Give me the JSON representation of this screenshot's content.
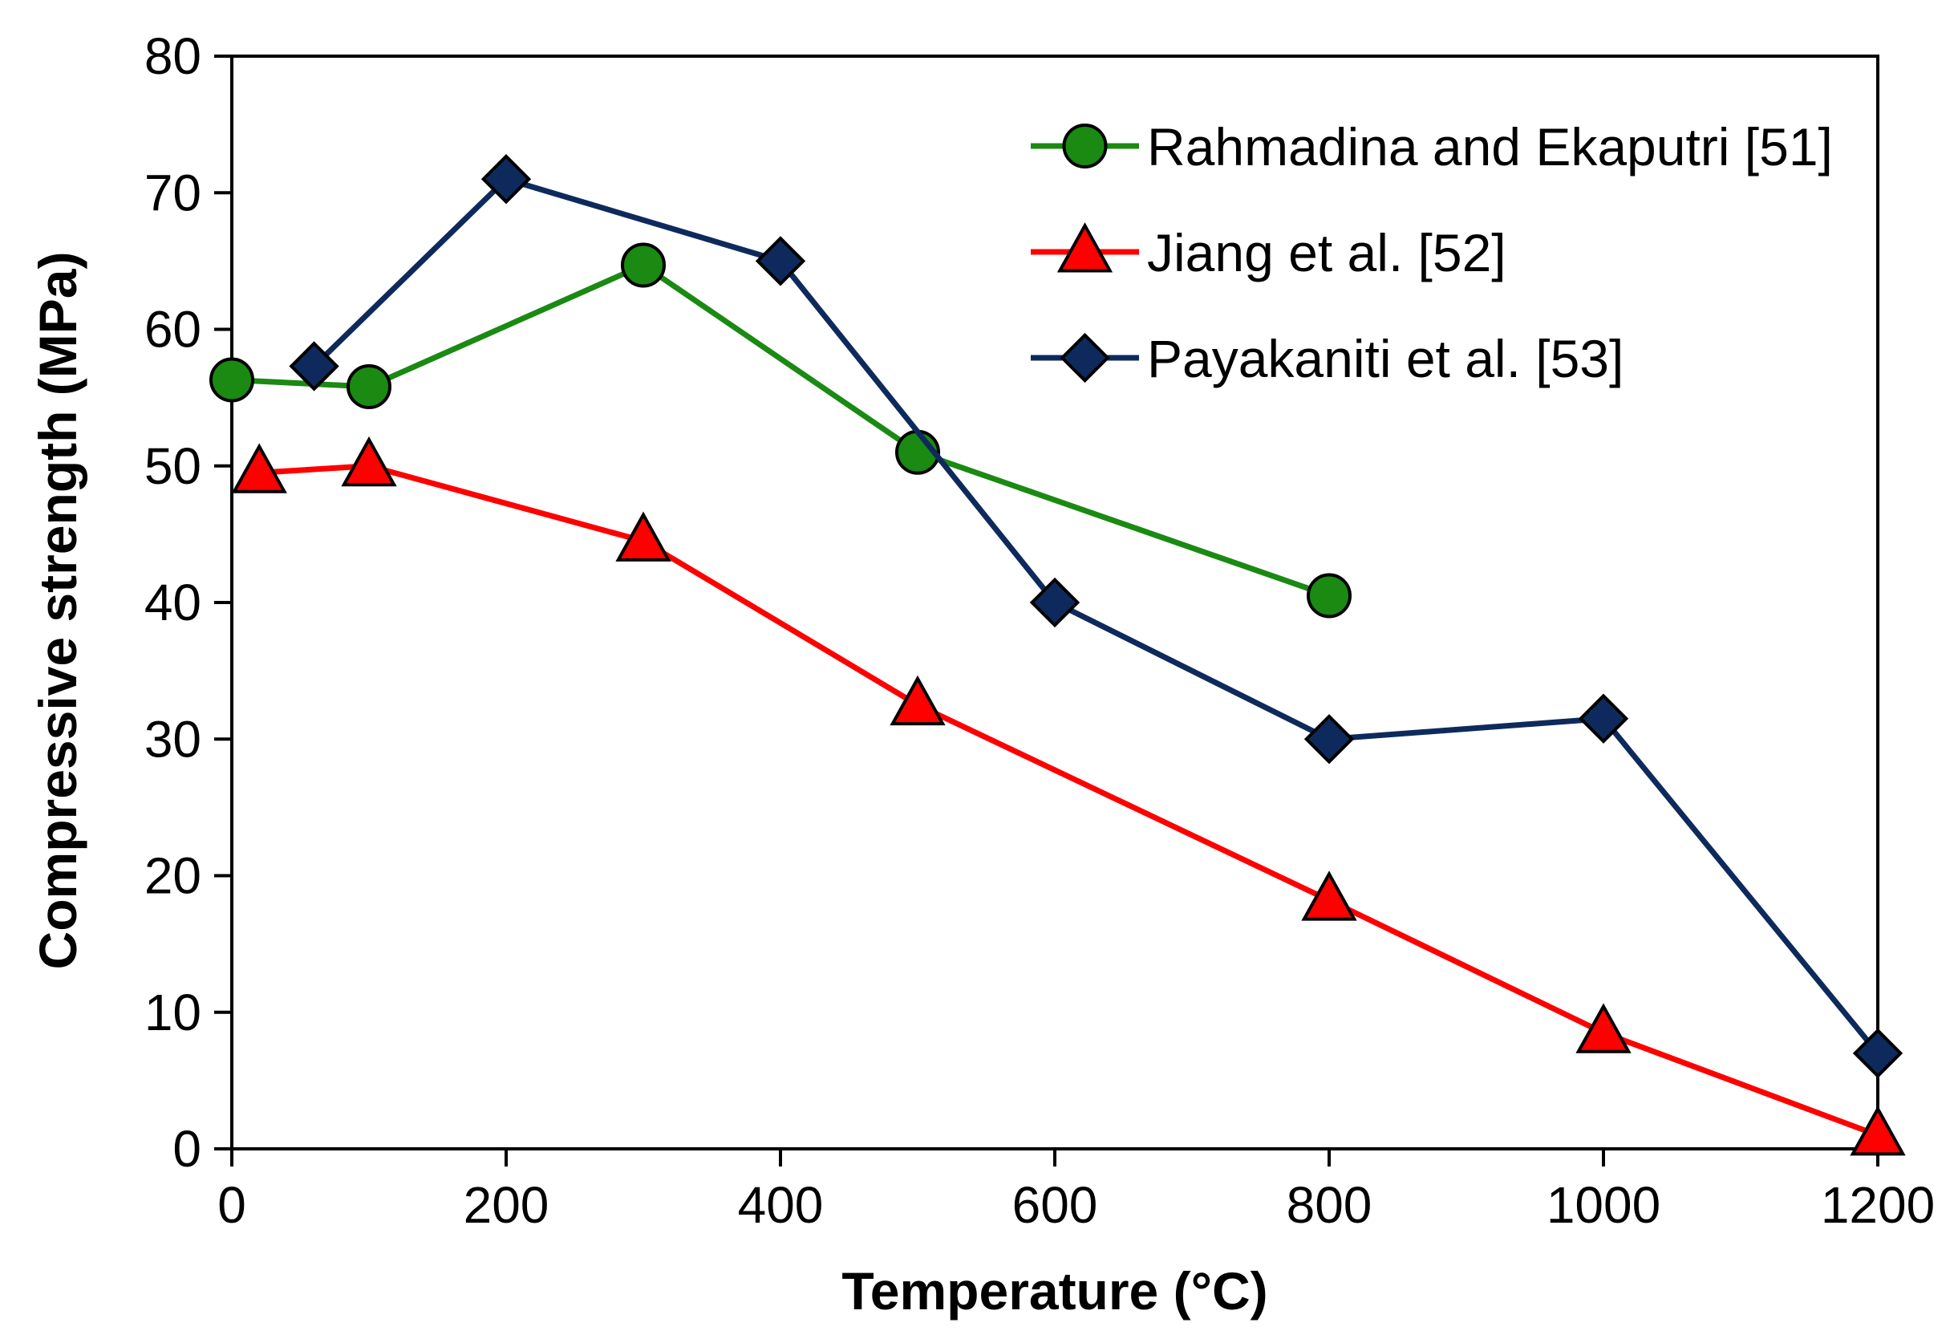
{
  "chart_data": {
    "type": "line",
    "title": "",
    "xlabel": "Temperature (°C)",
    "ylabel": "Compressive strength (MPa)",
    "xlim": [
      0,
      1200
    ],
    "ylim": [
      0,
      80
    ],
    "xticks": [
      0,
      200,
      400,
      600,
      800,
      1000,
      1200
    ],
    "xtick_labels": [
      "0",
      "200",
      "400",
      "600",
      "800",
      "1000",
      "1200"
    ],
    "yticks": [
      0,
      10,
      20,
      30,
      40,
      50,
      60,
      70,
      80
    ],
    "ytick_labels": [
      "0",
      "10",
      "20",
      "30",
      "40",
      "50",
      "60",
      "70",
      "80"
    ],
    "grid": false,
    "legend_position": "top-right",
    "series": [
      {
        "name": "Rahmadina and Ekaputri [51]",
        "marker": "circle",
        "color": "#1a8a12",
        "marker_color": "#1a8a12",
        "x": [
          0,
          100,
          300,
          500,
          800
        ],
        "y": [
          56.3,
          55.8,
          64.7,
          51.0,
          40.5
        ]
      },
      {
        "name": "Jiang et al. [52]",
        "marker": "triangle",
        "color": "#ff0000",
        "marker_color": "#ff0000",
        "x": [
          20,
          100,
          300,
          500,
          800,
          1000,
          1200
        ],
        "y": [
          49.5,
          50.0,
          44.5,
          32.5,
          18.2,
          8.5,
          1.0
        ]
      },
      {
        "name": "Payakaniti et al. [53]",
        "marker": "diamond",
        "color": "#0e2a5c",
        "marker_color": "#0e2a5c",
        "x": [
          60,
          200,
          400,
          600,
          800,
          1000,
          1200
        ],
        "y": [
          57.3,
          71.0,
          65.0,
          40.0,
          30.0,
          31.5,
          7.0
        ]
      }
    ]
  }
}
